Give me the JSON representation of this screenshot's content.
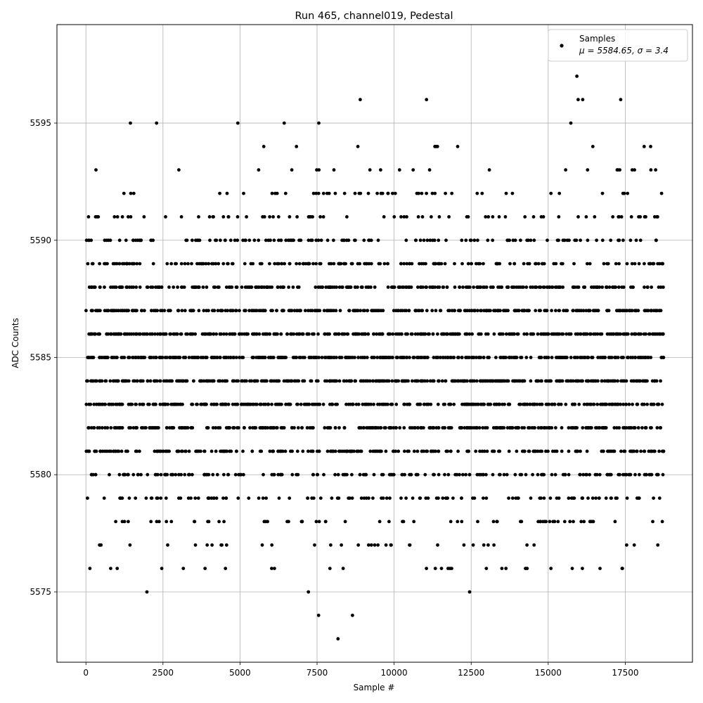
{
  "chart_data": {
    "type": "scatter",
    "title": "Run 465, channel019, Pedestal",
    "xlabel": "Sample #",
    "ylabel": "ADC Counts",
    "xlim": [
      -940,
      19680
    ],
    "ylim": [
      5572.0,
      5599.2
    ],
    "xticks": [
      0,
      2500,
      5000,
      7500,
      10000,
      12500,
      15000,
      17500
    ],
    "yticks": [
      5575,
      5580,
      5585,
      5590,
      5595
    ],
    "grid": true,
    "legend": {
      "position": "top-right",
      "series_label": "Samples",
      "stats_label": "μ = 5584.65, σ = 3.4"
    },
    "series": [
      {
        "name": "Samples",
        "color": "#000000",
        "sample_count": 18750,
        "mean": 5584.65,
        "sigma": 3.4,
        "values_min": 5573,
        "values_max": 5597,
        "outliers": [
          {
            "x": 1980,
            "y": 5575
          },
          {
            "x": 7220,
            "y": 5575
          },
          {
            "x": 12450,
            "y": 5575
          },
          {
            "x": 7550,
            "y": 5574
          },
          {
            "x": 8650,
            "y": 5574
          },
          {
            "x": 8180,
            "y": 5573
          },
          {
            "x": 15930,
            "y": 5597
          },
          {
            "x": 8900,
            "y": 5596
          },
          {
            "x": 11050,
            "y": 5596
          },
          {
            "x": 15970,
            "y": 5596
          },
          {
            "x": 16120,
            "y": 5596
          },
          {
            "x": 17350,
            "y": 5596
          }
        ]
      }
    ]
  }
}
